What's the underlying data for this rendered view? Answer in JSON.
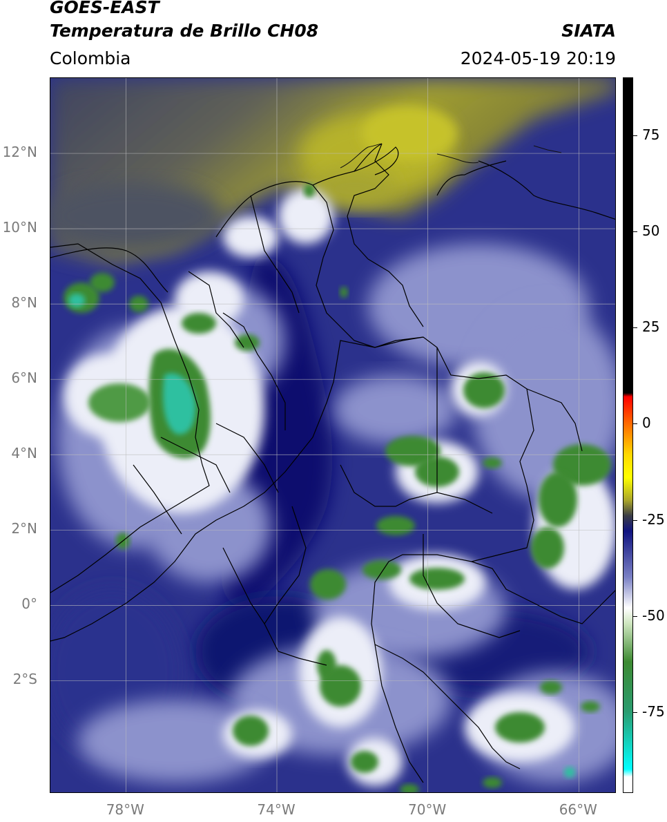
{
  "header": {
    "title_line1": "GOES-EAST",
    "title_line2": "Temperatura de Brillo CH08",
    "agency": "SIATA",
    "region": "Colombia",
    "timestamp": "2024-05-19 20:19"
  },
  "map": {
    "extent": {
      "lon_min": -80,
      "lon_max": -65,
      "lat_min": -5,
      "lat_max": 14
    },
    "lat_ticks": [
      {
        "value": 12,
        "label": "12°N"
      },
      {
        "value": 10,
        "label": "10°N"
      },
      {
        "value": 8,
        "label": "8°N"
      },
      {
        "value": 6,
        "label": "6°N"
      },
      {
        "value": 4,
        "label": "4°N"
      },
      {
        "value": 2,
        "label": "2°N"
      },
      {
        "value": 0,
        "label": "0°"
      },
      {
        "value": -2,
        "label": "2°S"
      }
    ],
    "lon_ticks": [
      {
        "value": -78,
        "label": "78°W"
      },
      {
        "value": -74,
        "label": "74°W"
      },
      {
        "value": -70,
        "label": "70°W"
      },
      {
        "value": -66,
        "label": "66°W"
      }
    ],
    "colors": {
      "background_cold": "#23287f",
      "deep_blue": "#0a0f6a",
      "mid_blue": "#5a60b0",
      "light_blue": "#aab0dc",
      "white_cloud": "#eef0f7",
      "green": "#3d8a32",
      "teal": "#2cc4a8",
      "dry_olive": "#9a9a2a",
      "dry_yellow": "#c9c52a",
      "dry_grey": "#565868",
      "border_line": "#000000",
      "gridline": "#bdbdbd"
    }
  },
  "colorbar": {
    "vmin": -96,
    "vmax": 90,
    "ticks": [
      {
        "value": 75,
        "label": "75"
      },
      {
        "value": 50,
        "label": "50"
      },
      {
        "value": 25,
        "label": "25"
      },
      {
        "value": 0,
        "label": "0"
      },
      {
        "value": -25,
        "label": "-25"
      },
      {
        "value": -50,
        "label": "-50"
      },
      {
        "value": -75,
        "label": "-75"
      }
    ],
    "stops": [
      {
        "value": 90,
        "color": "#000000"
      },
      {
        "value": 8,
        "color": "#000000"
      },
      {
        "value": 7,
        "color": "#ff0000"
      },
      {
        "value": 0,
        "color": "#ff6a00"
      },
      {
        "value": -8,
        "color": "#ffd800"
      },
      {
        "value": -14,
        "color": "#ffff00"
      },
      {
        "value": -20,
        "color": "#a9a52a"
      },
      {
        "value": -24,
        "color": "#3a3c46"
      },
      {
        "value": -28,
        "color": "#101480"
      },
      {
        "value": -40,
        "color": "#7a80c4"
      },
      {
        "value": -48,
        "color": "#ffffff"
      },
      {
        "value": -52,
        "color": "#cfe6c0"
      },
      {
        "value": -62,
        "color": "#3d8a32"
      },
      {
        "value": -75,
        "color": "#2a9c70"
      },
      {
        "value": -90,
        "color": "#00ffff"
      },
      {
        "value": -92,
        "color": "#ffffff"
      },
      {
        "value": -96,
        "color": "#ffffff"
      }
    ]
  }
}
